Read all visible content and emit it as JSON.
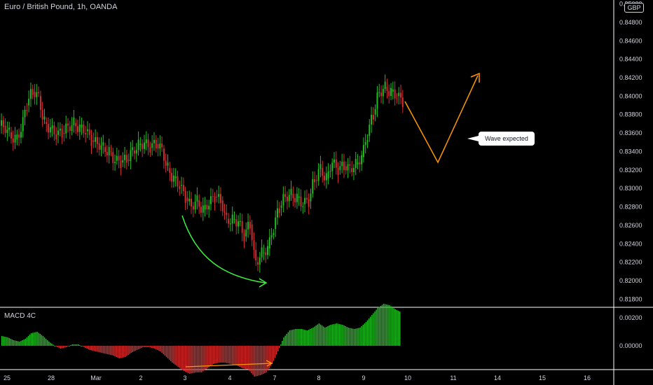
{
  "header": {
    "title": "Euro / British Pound, 1h, OANDA",
    "currency": "GBP",
    "indicator": "MACD 4C"
  },
  "annotation": {
    "text": "Wave expected"
  },
  "chart_data": [
    {
      "type": "candlestick",
      "title": "Euro / British Pound, 1h, OANDA",
      "ylim": [
        0.817,
        0.85
      ],
      "y_ticks": [
        "0.85000",
        "0.84800",
        "0.84600",
        "0.84400",
        "0.84200",
        "0.84000",
        "0.83800",
        "0.83600",
        "0.83400",
        "0.83200",
        "0.83000",
        "0.82800",
        "0.82600",
        "0.82400",
        "0.82200",
        "0.82000",
        "0.81800"
      ],
      "x_ticks": [
        "25",
        "28",
        "Mar",
        "2",
        "3",
        "4",
        "7",
        "8",
        "9",
        "10",
        "11",
        "14",
        "15",
        "16"
      ],
      "closes": [
        0.8368,
        0.8361,
        0.8353,
        0.8362,
        0.839,
        0.8405,
        0.84,
        0.8372,
        0.8365,
        0.8358,
        0.836,
        0.8367,
        0.8371,
        0.8366,
        0.8362,
        0.8352,
        0.8349,
        0.8345,
        0.834,
        0.833,
        0.8328,
        0.8331,
        0.8341,
        0.8347,
        0.8349,
        0.8344,
        0.8348,
        0.8343,
        0.8322,
        0.8311,
        0.8303,
        0.829,
        0.8281,
        0.8287,
        0.8277,
        0.8283,
        0.8291,
        0.8287,
        0.8267,
        0.8266,
        0.8264,
        0.8248,
        0.8261,
        0.822,
        0.823,
        0.8235,
        0.8256,
        0.8279,
        0.8291,
        0.8294,
        0.829,
        0.8283,
        0.8286,
        0.8309,
        0.8322,
        0.8311,
        0.8328,
        0.832,
        0.8324,
        0.8322,
        0.8326,
        0.8334,
        0.8357,
        0.838,
        0.8404,
        0.841,
        0.8405,
        0.84,
        0.8394
      ],
      "series": [
        {
          "name": "MACD 4C",
          "values": [
            0.0007,
            0.0006,
            0.0004,
            0.0003,
            0.0005,
            0.0009,
            0.001,
            0.0007,
            0.0003,
            0.0,
            -0.0002,
            -0.0001,
            0.0001,
            0.0001,
            -0.0001,
            -0.0003,
            -0.0004,
            -0.0005,
            -0.0006,
            -0.0007,
            -0.0009,
            -0.0008,
            -0.0005,
            -0.0003,
            -0.0001,
            -0.0001,
            -0.0002,
            -0.0004,
            -0.0008,
            -0.0012,
            -0.0015,
            -0.0018,
            -0.002,
            -0.0019,
            -0.0019,
            -0.0016,
            -0.0013,
            -0.0012,
            -0.0012,
            -0.0013,
            -0.0014,
            -0.0016,
            -0.0017,
            -0.0022,
            -0.0021,
            -0.0019,
            -0.0013,
            -0.0004,
            0.0006,
            0.0011,
            0.0012,
            0.0012,
            0.0011,
            0.0013,
            0.0016,
            0.0013,
            0.0015,
            0.0016,
            0.0015,
            0.0013,
            0.0012,
            0.0013,
            0.0017,
            0.0022,
            0.0027,
            0.003,
            0.0029,
            0.0026,
            0.0024
          ]
        }
      ],
      "macd_ylim": [
        -0.0035,
        0.0034
      ],
      "macd_ticks": [
        "0.00200",
        "0.00000"
      ],
      "colors": {
        "up": "#26a69a",
        "green": "#1fbf1f",
        "red": "#d32f2f",
        "orange": "#ff9800",
        "arrow_green": "#3ef03e",
        "grid": "#ffffff"
      }
    }
  ]
}
